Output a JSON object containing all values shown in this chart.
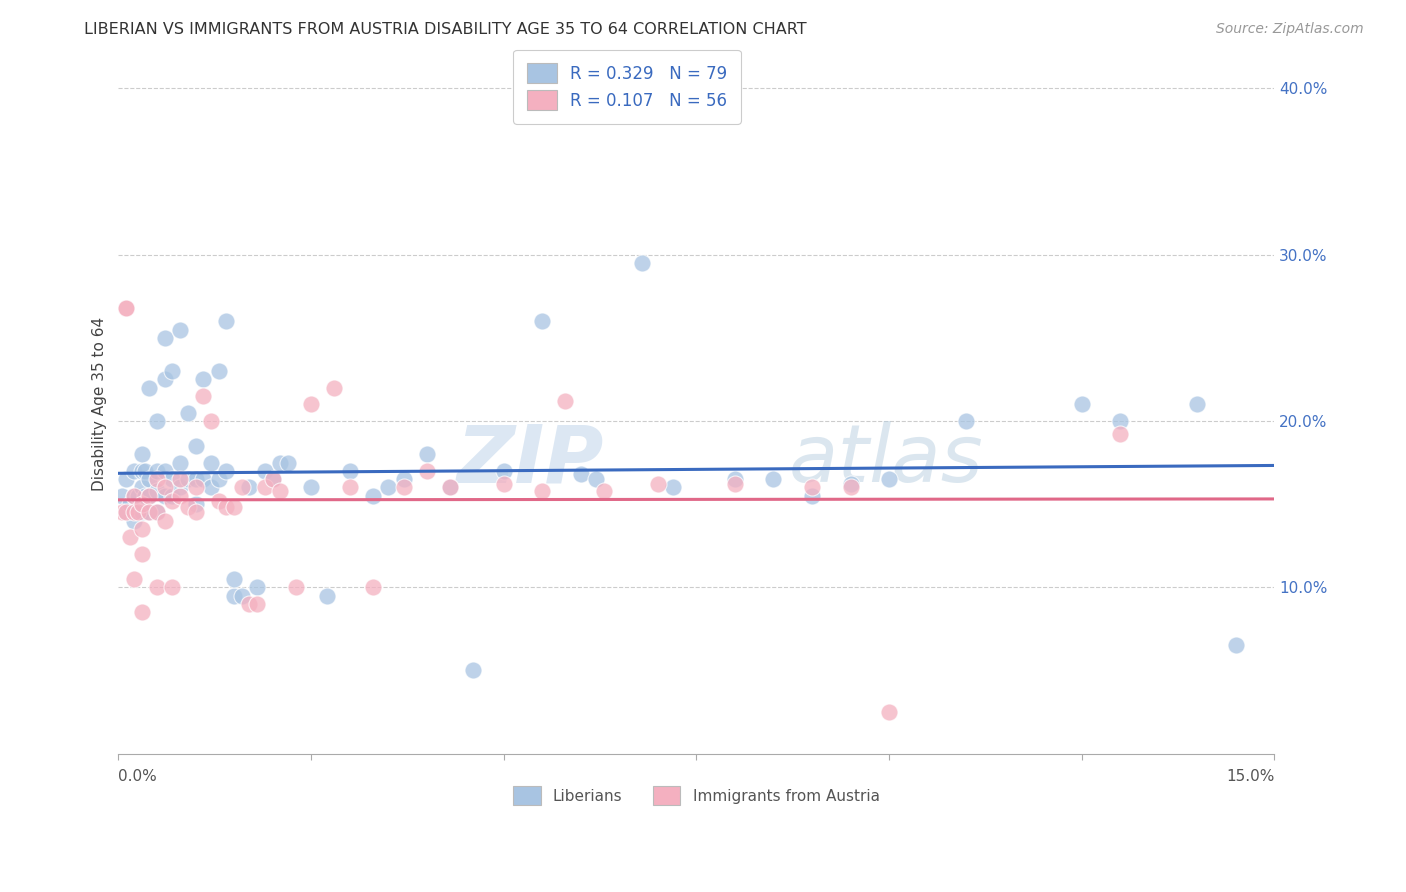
{
  "title": "LIBERIAN VS IMMIGRANTS FROM AUSTRIA DISABILITY AGE 35 TO 64 CORRELATION CHART",
  "source": "Source: ZipAtlas.com",
  "ylabel": "Disability Age 35 to 64",
  "xlim": [
    0.0,
    0.15
  ],
  "ylim": [
    0.0,
    0.42
  ],
  "xlim_display": [
    0.0,
    0.15
  ],
  "R_liberian": 0.329,
  "N_liberian": 79,
  "R_austria": 0.107,
  "N_austria": 56,
  "liberian_color": "#a8c4e2",
  "austria_color": "#f4b0c0",
  "liberian_line_color": "#3a6abf",
  "austria_line_color": "#e06888",
  "background_color": "#ffffff",
  "grid_color": "#cccccc",
  "watermark": "ZIPatlas",
  "liberian_x": [
    0.0005,
    0.001,
    0.001,
    0.0015,
    0.002,
    0.002,
    0.002,
    0.0025,
    0.003,
    0.003,
    0.003,
    0.003,
    0.0035,
    0.0035,
    0.004,
    0.004,
    0.004,
    0.004,
    0.005,
    0.005,
    0.005,
    0.005,
    0.006,
    0.006,
    0.006,
    0.006,
    0.007,
    0.007,
    0.007,
    0.008,
    0.008,
    0.008,
    0.009,
    0.009,
    0.01,
    0.01,
    0.01,
    0.011,
    0.011,
    0.012,
    0.012,
    0.013,
    0.013,
    0.014,
    0.014,
    0.015,
    0.015,
    0.016,
    0.017,
    0.018,
    0.019,
    0.02,
    0.021,
    0.022,
    0.025,
    0.027,
    0.03,
    0.033,
    0.035,
    0.037,
    0.04,
    0.043,
    0.046,
    0.05,
    0.055,
    0.06,
    0.062,
    0.068,
    0.072,
    0.08,
    0.085,
    0.09,
    0.095,
    0.1,
    0.11,
    0.125,
    0.13,
    0.14,
    0.145
  ],
  "liberian_y": [
    0.155,
    0.145,
    0.165,
    0.15,
    0.14,
    0.155,
    0.17,
    0.155,
    0.145,
    0.16,
    0.17,
    0.18,
    0.155,
    0.17,
    0.145,
    0.155,
    0.165,
    0.22,
    0.145,
    0.158,
    0.17,
    0.2,
    0.155,
    0.17,
    0.225,
    0.25,
    0.155,
    0.165,
    0.23,
    0.16,
    0.175,
    0.255,
    0.165,
    0.205,
    0.15,
    0.165,
    0.185,
    0.165,
    0.225,
    0.16,
    0.175,
    0.165,
    0.23,
    0.17,
    0.26,
    0.095,
    0.105,
    0.095,
    0.16,
    0.1,
    0.17,
    0.165,
    0.175,
    0.175,
    0.16,
    0.095,
    0.17,
    0.155,
    0.16,
    0.165,
    0.18,
    0.16,
    0.05,
    0.17,
    0.26,
    0.168,
    0.165,
    0.295,
    0.16,
    0.165,
    0.165,
    0.155,
    0.162,
    0.165,
    0.2,
    0.21,
    0.2,
    0.21,
    0.065
  ],
  "austria_x": [
    0.0005,
    0.001,
    0.001,
    0.001,
    0.0015,
    0.002,
    0.002,
    0.002,
    0.0025,
    0.003,
    0.003,
    0.003,
    0.003,
    0.004,
    0.004,
    0.005,
    0.005,
    0.005,
    0.006,
    0.006,
    0.007,
    0.007,
    0.008,
    0.008,
    0.009,
    0.01,
    0.01,
    0.011,
    0.012,
    0.013,
    0.014,
    0.015,
    0.016,
    0.017,
    0.018,
    0.019,
    0.02,
    0.021,
    0.023,
    0.025,
    0.028,
    0.03,
    0.033,
    0.037,
    0.04,
    0.043,
    0.05,
    0.055,
    0.058,
    0.063,
    0.07,
    0.08,
    0.09,
    0.095,
    0.1,
    0.13
  ],
  "austria_y": [
    0.145,
    0.268,
    0.268,
    0.145,
    0.13,
    0.155,
    0.145,
    0.105,
    0.145,
    0.135,
    0.15,
    0.12,
    0.085,
    0.155,
    0.145,
    0.145,
    0.1,
    0.165,
    0.14,
    0.16,
    0.152,
    0.1,
    0.155,
    0.165,
    0.148,
    0.16,
    0.145,
    0.215,
    0.2,
    0.152,
    0.148,
    0.148,
    0.16,
    0.09,
    0.09,
    0.16,
    0.165,
    0.158,
    0.1,
    0.21,
    0.22,
    0.16,
    0.1,
    0.16,
    0.17,
    0.16,
    0.162,
    0.158,
    0.212,
    0.158,
    0.162,
    0.162,
    0.16,
    0.16,
    0.025,
    0.192
  ]
}
